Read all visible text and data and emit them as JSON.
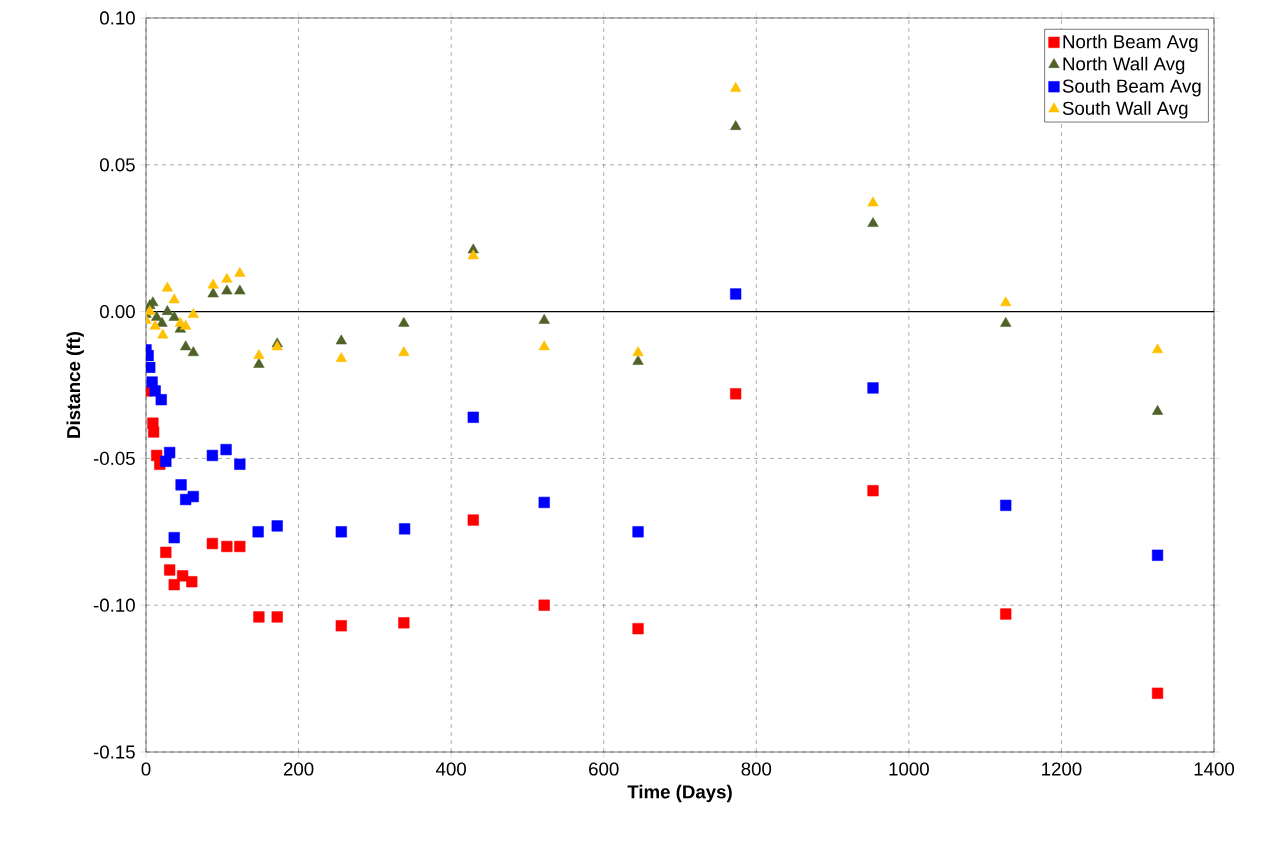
{
  "chart_data": {
    "type": "scatter",
    "xlabel": "Time (Days)",
    "ylabel": "Distance (ft)",
    "xlim": [
      0,
      1400
    ],
    "ylim": [
      -0.15,
      0.1
    ],
    "xticks": [
      0,
      200,
      400,
      600,
      800,
      1000,
      1200,
      1400
    ],
    "yticks": [
      {
        "value": -0.15,
        "label": "-0.15"
      },
      {
        "value": -0.1,
        "label": "-0.10"
      },
      {
        "value": -0.05,
        "label": "-0.05"
      },
      {
        "value": 0,
        "label": "0.00"
      },
      {
        "value": 0.05,
        "label": "0.05"
      },
      {
        "value": 0.1,
        "label": "0.10"
      }
    ],
    "grid": true,
    "legend": "top right",
    "ref_lines": [
      {
        "axis": "y",
        "value": 0,
        "line_style": "solid",
        "color": "#000000"
      }
    ],
    "series": [
      {
        "name": "North Beam Avg",
        "color": "#ff0000",
        "marker": "square",
        "x": [
          0,
          9,
          10,
          14,
          18,
          26,
          31,
          37,
          48,
          60,
          87,
          106,
          123,
          148,
          172,
          256,
          338,
          429,
          522,
          645,
          773,
          953,
          1127,
          1326
        ],
        "values": [
          -0.027,
          -0.038,
          -0.041,
          -0.049,
          -0.052,
          -0.082,
          -0.088,
          -0.093,
          -0.09,
          -0.092,
          -0.079,
          -0.08,
          -0.08,
          -0.104,
          -0.104,
          -0.107,
          -0.106,
          -0.071,
          -0.1,
          -0.108,
          -0.028,
          -0.061,
          -0.103,
          -0.13
        ]
      },
      {
        "name": "North Wall Avg",
        "color": "#4f6228",
        "marker": "triangle",
        "x": [
          0,
          5,
          9,
          14,
          21,
          28,
          37,
          45,
          52,
          62,
          88,
          106,
          123,
          148,
          172,
          256,
          338,
          429,
          522,
          645,
          773,
          953,
          1127,
          1326
        ],
        "values": [
          -0.001,
          0.002,
          0.003,
          -0.002,
          -0.004,
          0.0,
          -0.002,
          -0.006,
          -0.012,
          -0.014,
          0.006,
          0.007,
          0.007,
          -0.018,
          -0.011,
          -0.01,
          -0.004,
          0.021,
          -0.003,
          -0.017,
          0.063,
          0.03,
          -0.004,
          -0.034
        ]
      },
      {
        "name": "South Beam Avg",
        "color": "#0000ff",
        "marker": "square",
        "x": [
          0,
          3,
          5,
          8,
          12,
          14,
          20,
          26,
          31,
          37,
          46,
          52,
          62,
          87,
          105,
          123,
          147,
          172,
          256,
          339,
          429,
          522,
          645,
          773,
          953,
          1127,
          1326
        ],
        "values": [
          -0.013,
          -0.015,
          -0.019,
          -0.024,
          -0.027,
          null,
          -0.03,
          -0.051,
          -0.048,
          -0.077,
          -0.059,
          -0.064,
          -0.063,
          -0.049,
          -0.047,
          -0.052,
          -0.075,
          -0.073,
          -0.075,
          -0.074,
          -0.036,
          -0.065,
          -0.075,
          0.006,
          -0.026,
          -0.066,
          -0.083
        ]
      },
      {
        "name": "South Wall Avg",
        "color": "#ffc000",
        "marker": "triangle",
        "x": [
          0,
          5,
          12,
          22,
          28,
          37,
          45,
          52,
          62,
          88,
          106,
          123,
          148,
          172,
          256,
          338,
          429,
          522,
          645,
          773,
          953,
          1127,
          1326
        ],
        "values": [
          -0.003,
          0.0,
          -0.005,
          -0.008,
          0.008,
          0.004,
          -0.004,
          -0.005,
          -0.001,
          0.009,
          0.011,
          0.013,
          -0.015,
          -0.012,
          -0.016,
          -0.014,
          0.019,
          -0.012,
          -0.014,
          0.076,
          0.037,
          0.003,
          -0.013
        ]
      }
    ]
  }
}
